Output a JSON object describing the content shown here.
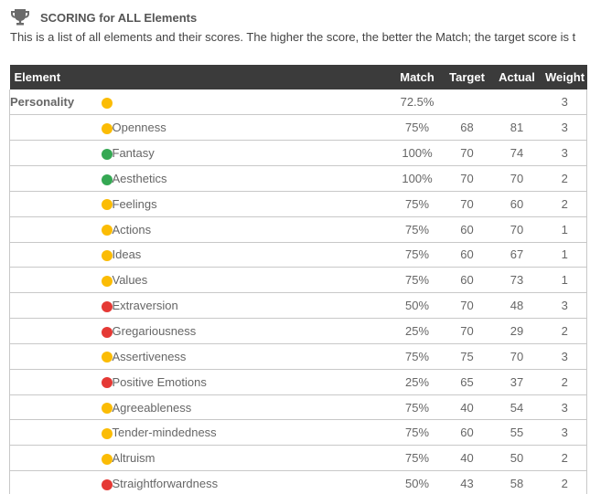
{
  "header": {
    "title": "SCORING for ALL Elements",
    "subtitle": "This is a list of all elements and their scores. The higher the score, the better the Match; the target score is t",
    "icon": "trophy-icon"
  },
  "colors": {
    "green": "#35a853",
    "yellow": "#fbbc05",
    "red": "#e53935"
  },
  "table": {
    "columns": {
      "element": "Element",
      "match": "Match",
      "target": "Target",
      "actual": "Actual",
      "weight": "Weight"
    },
    "rows": [
      {
        "level": 0,
        "name": "Personality",
        "status": "yellow",
        "match": "72.5%",
        "target": "",
        "actual": "",
        "weight": "3"
      },
      {
        "level": 1,
        "name": "Openness",
        "status": "yellow",
        "match": "75%",
        "target": "68",
        "actual": "81",
        "weight": "3"
      },
      {
        "level": 2,
        "name": "Fantasy",
        "status": "green",
        "match": "100%",
        "target": "70",
        "actual": "74",
        "weight": "3"
      },
      {
        "level": 2,
        "name": "Aesthetics",
        "status": "green",
        "match": "100%",
        "target": "70",
        "actual": "70",
        "weight": "2"
      },
      {
        "level": 2,
        "name": "Feelings",
        "status": "yellow",
        "match": "75%",
        "target": "70",
        "actual": "60",
        "weight": "2"
      },
      {
        "level": 2,
        "name": "Actions",
        "status": "yellow",
        "match": "75%",
        "target": "60",
        "actual": "70",
        "weight": "1"
      },
      {
        "level": 2,
        "name": "Ideas",
        "status": "yellow",
        "match": "75%",
        "target": "60",
        "actual": "67",
        "weight": "1"
      },
      {
        "level": 2,
        "name": "Values",
        "status": "yellow",
        "match": "75%",
        "target": "60",
        "actual": "73",
        "weight": "1"
      },
      {
        "level": 1,
        "name": "Extraversion",
        "status": "red",
        "match": "50%",
        "target": "70",
        "actual": "48",
        "weight": "3"
      },
      {
        "level": 2,
        "name": "Gregariousness",
        "status": "red",
        "match": "25%",
        "target": "70",
        "actual": "29",
        "weight": "2"
      },
      {
        "level": 2,
        "name": "Assertiveness",
        "status": "yellow",
        "match": "75%",
        "target": "75",
        "actual": "70",
        "weight": "3"
      },
      {
        "level": 2,
        "name": "Positive Emotions",
        "status": "red",
        "match": "25%",
        "target": "65",
        "actual": "37",
        "weight": "2"
      },
      {
        "level": 1,
        "name": "Agreeableness",
        "status": "yellow",
        "match": "75%",
        "target": "40",
        "actual": "54",
        "weight": "3"
      },
      {
        "level": 2,
        "name": "Tender-mindedness",
        "status": "yellow",
        "match": "75%",
        "target": "60",
        "actual": "55",
        "weight": "3"
      },
      {
        "level": 2,
        "name": "Altruism",
        "status": "yellow",
        "match": "75%",
        "target": "40",
        "actual": "50",
        "weight": "2"
      },
      {
        "level": 2,
        "name": "Straightforwardness",
        "status": "red",
        "match": "50%",
        "target": "43",
        "actual": "58",
        "weight": "2"
      }
    ]
  }
}
